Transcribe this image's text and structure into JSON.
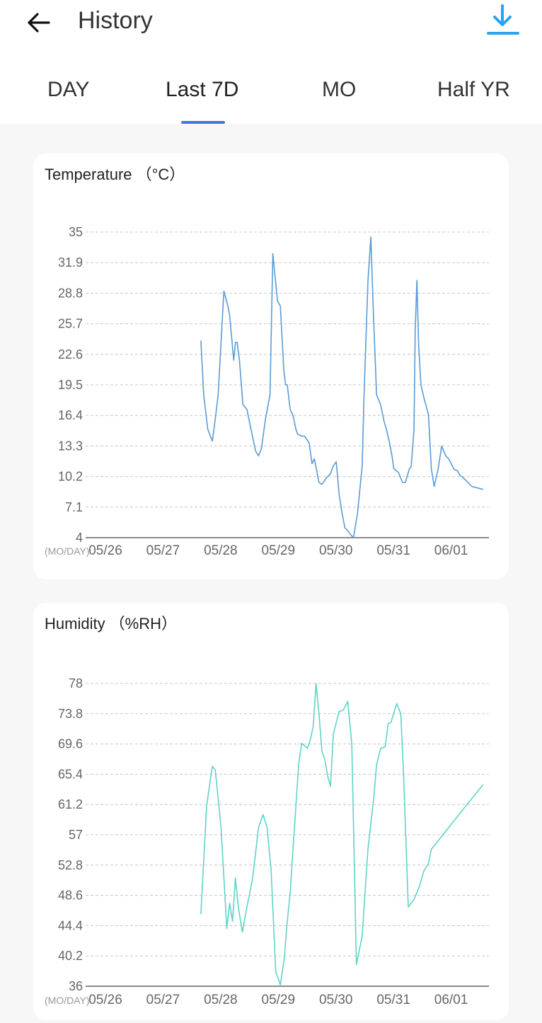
{
  "header": {
    "title": "History",
    "back_icon": "arrow-left-icon",
    "download_icon": "download-icon",
    "accent_color": "#2aa3f0"
  },
  "tabs": [
    {
      "label": "DAY",
      "active": false
    },
    {
      "label": "Last 7D",
      "active": true
    },
    {
      "label": "MO",
      "active": false
    },
    {
      "label": "Half YR",
      "active": false
    }
  ],
  "charts": [
    {
      "title": "Temperature （°C）"
    },
    {
      "title": "Humidity （%RH）"
    }
  ],
  "chart_data": [
    {
      "type": "line",
      "title": "Temperature （°C）",
      "x_unit_label": "(MO/DAY)",
      "x_tick_labels": [
        "05/26",
        "05/27",
        "05/28",
        "05/29",
        "05/30",
        "05/31",
        "06/01"
      ],
      "y_tick_labels": [
        "35",
        "31.9",
        "28.8",
        "25.7",
        "22.6",
        "19.5",
        "16.4",
        "13.3",
        "10.2",
        "7.1",
        "4"
      ],
      "ylim": [
        4,
        35
      ],
      "xlim": [
        0,
        7
      ],
      "grid": true,
      "line_color": "#5b9bd5",
      "series": [
        {
          "x": [
            2.0,
            2.05,
            2.12,
            2.2,
            2.25,
            2.3,
            2.4,
            2.47,
            2.5,
            2.57,
            2.6,
            2.63,
            2.67,
            2.73,
            2.8,
            2.87,
            2.95,
            3.0,
            3.05,
            3.12,
            3.2,
            3.25,
            3.33,
            3.38,
            3.44,
            3.47,
            3.5,
            3.55,
            3.6,
            3.65,
            3.68,
            3.75,
            3.8,
            3.88,
            3.93,
            3.97,
            4.05,
            4.1,
            4.17,
            4.25,
            4.3,
            4.35,
            4.4,
            4.45,
            4.5,
            4.55,
            4.6,
            4.65,
            4.72,
            4.8,
            4.83,
            4.9,
            4.95,
            5.0,
            5.05,
            5.12,
            5.18,
            5.22,
            5.28,
            5.32,
            5.35,
            5.43,
            5.5,
            5.55,
            5.62,
            5.65,
            5.7,
            5.72,
            5.75,
            5.78,
            5.82,
            5.88,
            5.95,
            6.0,
            6.05,
            6.12,
            6.18,
            6.25,
            6.3,
            6.4,
            6.45,
            6.5,
            6.55,
            6.62,
            6.7,
            6.83,
            6.9
          ],
          "y": [
            24,
            18.5,
            15,
            13.8,
            16,
            18.5,
            29,
            27.5,
            26.5,
            22,
            23.8,
            23.8,
            22,
            17.5,
            17,
            15,
            12.8,
            12.3,
            13,
            16,
            18.5,
            32.8,
            28,
            27.5,
            21,
            19.5,
            19.5,
            17,
            16.4,
            15,
            14.5,
            14.3,
            14.3,
            13.6,
            11.5,
            12,
            9.6,
            9.4,
            10,
            10.5,
            11.3,
            11.7,
            8.4,
            6.5,
            5,
            4.7,
            4.3,
            4,
            6.5,
            11.3,
            18,
            30,
            34.5,
            26,
            18.5,
            17.5,
            15.8,
            15,
            13.5,
            12.2,
            11,
            10.6,
            9.6,
            9.6,
            11,
            11.2,
            15,
            25,
            30.1,
            23.5,
            19.5,
            18,
            16.5,
            11,
            9.2,
            11,
            13.3,
            12.3,
            12,
            10.9,
            10.8,
            10.3,
            10.1,
            9.7,
            9.2,
            9.0,
            8.9
          ]
        }
      ]
    },
    {
      "type": "line",
      "title": "Humidity （%RH）",
      "x_unit_label": "(MO/DAY)",
      "x_tick_labels": [
        "05/26",
        "05/27",
        "05/28",
        "05/29",
        "05/30",
        "05/31",
        "06/01"
      ],
      "y_tick_labels": [
        "78",
        "73.8",
        "69.6",
        "65.4",
        "61.2",
        "57",
        "52.8",
        "48.6",
        "44.4",
        "40.2",
        "36"
      ],
      "ylim": [
        36,
        78
      ],
      "xlim": [
        0,
        7
      ],
      "grid": true,
      "line_color": "#5fd3c6",
      "series": [
        {
          "x": [
            2.0,
            2.1,
            2.2,
            2.25,
            2.35,
            2.45,
            2.5,
            2.55,
            2.6,
            2.65,
            2.72,
            2.8,
            2.9,
            3.0,
            3.08,
            3.15,
            3.22,
            3.3,
            3.38,
            3.45,
            3.5,
            3.55,
            3.6,
            3.7,
            3.75,
            3.85,
            3.9,
            3.95,
            4.0,
            4.05,
            4.1,
            4.15,
            4.2,
            4.25,
            4.3,
            4.4,
            4.47,
            4.55,
            4.62,
            4.7,
            4.8,
            4.9,
            5.0,
            5.05,
            5.12,
            5.2,
            5.25,
            5.3,
            5.4,
            5.47,
            5.52,
            5.6,
            5.7,
            5.8,
            5.87,
            5.95,
            6.0,
            6.1,
            6.2,
            6.3,
            6.4,
            6.5,
            6.6,
            6.7,
            6.8,
            6.9
          ],
          "y": [
            46,
            61,
            66.5,
            66,
            58,
            44,
            47.5,
            45,
            51,
            47,
            43.5,
            47,
            51,
            58,
            59.8,
            58,
            52,
            38,
            36.2,
            40,
            45,
            49,
            55,
            67,
            69.7,
            69,
            70.2,
            72,
            78,
            73.8,
            68.6,
            67.5,
            65.2,
            63.7,
            71,
            74.1,
            74.3,
            75.5,
            69.6,
            39,
            43,
            55,
            62,
            66.7,
            69,
            69.2,
            72.4,
            72.6,
            75.2,
            73.8,
            65,
            47,
            48,
            50,
            52,
            53,
            55,
            56,
            57,
            58,
            59,
            60,
            61,
            62,
            63,
            64
          ]
        }
      ]
    }
  ]
}
